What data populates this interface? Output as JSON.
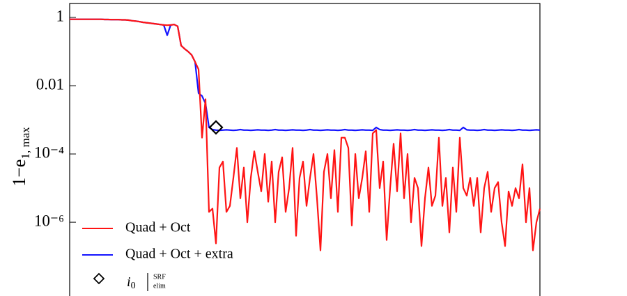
{
  "chart_data": {
    "type": "line",
    "ylabel": "1−e",
    "ylabel_sub": "1, max",
    "x": [
      0,
      1,
      2,
      3,
      4,
      5,
      6,
      7,
      8,
      9,
      10,
      11,
      12,
      13,
      14,
      15,
      16,
      17,
      18,
      19,
      20,
      21,
      22,
      23,
      24,
      25,
      26,
      27,
      28,
      29,
      30,
      31,
      32,
      33,
      34,
      35,
      36,
      37,
      38,
      39,
      40,
      41,
      42,
      43,
      44,
      45,
      46,
      47,
      48,
      49,
      50,
      51,
      52,
      53,
      54,
      55,
      56,
      57,
      58,
      59,
      60,
      61,
      62,
      63,
      64,
      65,
      66,
      67,
      68,
      69,
      70,
      71,
      72,
      73,
      74,
      75,
      76,
      77,
      78,
      79,
      80,
      81,
      82,
      83,
      84,
      85,
      86,
      87,
      88,
      89,
      90,
      91,
      92,
      93,
      94,
      95,
      96,
      97,
      98,
      99,
      100,
      101,
      102,
      103,
      104,
      105,
      106,
      107,
      108,
      109,
      110,
      111,
      112,
      113,
      114,
      115,
      116,
      117,
      118,
      119,
      120,
      121,
      122,
      123,
      124,
      125,
      126,
      127,
      128,
      129,
      130,
      131,
      132,
      133,
      134,
      135
    ],
    "series": [
      {
        "name": "Quad + Oct + extra",
        "color": "#1414ff",
        "values": [
          0.88,
          0.88,
          0.88,
          0.88,
          0.88,
          0.88,
          0.88,
          0.88,
          0.88,
          0.88,
          0.87,
          0.87,
          0.86,
          0.86,
          0.86,
          0.85,
          0.85,
          0.83,
          0.8,
          0.78,
          0.75,
          0.72,
          0.7,
          0.68,
          0.66,
          0.64,
          0.62,
          0.6,
          0.3,
          0.6,
          0.62,
          0.55,
          0.15,
          0.12,
          0.1,
          0.08,
          0.05,
          0.006,
          0.005,
          0.003,
          0.0006,
          0.00052,
          0.0005,
          0.00049,
          0.0005,
          0.00051,
          0.0005,
          0.00049,
          0.0005,
          0.00052,
          0.0005,
          0.0005,
          0.00049,
          0.0005,
          0.00051,
          0.0005,
          0.0005,
          0.00049,
          0.0005,
          0.00052,
          0.0005,
          0.0005,
          0.00049,
          0.0005,
          0.00051,
          0.0005,
          0.0005,
          0.00049,
          0.0005,
          0.00052,
          0.0005,
          0.0005,
          0.00049,
          0.0005,
          0.00051,
          0.0005,
          0.0005,
          0.00049,
          0.0005,
          0.00052,
          0.0005,
          0.0005,
          0.00049,
          0.0005,
          0.00051,
          0.0005,
          0.0005,
          0.00049,
          0.0006,
          0.00052,
          0.0005,
          0.0005,
          0.00049,
          0.0005,
          0.00051,
          0.0005,
          0.0005,
          0.00049,
          0.0005,
          0.00052,
          0.0005,
          0.0005,
          0.00049,
          0.0005,
          0.00051,
          0.0005,
          0.0005,
          0.00049,
          0.0005,
          0.00052,
          0.0005,
          0.0005,
          0.00049,
          0.0006,
          0.00051,
          0.0005,
          0.0005,
          0.00049,
          0.0005,
          0.00052,
          0.0005,
          0.0005,
          0.00049,
          0.0005,
          0.00051,
          0.0005,
          0.0005,
          0.00049,
          0.0005,
          0.00052,
          0.0005,
          0.0005,
          0.00049,
          0.0005,
          0.00051,
          0.0005
        ]
      },
      {
        "name": "Quad + Oct",
        "color": "#ff1414",
        "values": [
          0.88,
          0.88,
          0.88,
          0.88,
          0.88,
          0.88,
          0.88,
          0.88,
          0.88,
          0.88,
          0.87,
          0.87,
          0.86,
          0.86,
          0.86,
          0.85,
          0.85,
          0.83,
          0.8,
          0.78,
          0.75,
          0.72,
          0.7,
          0.68,
          0.66,
          0.64,
          0.62,
          0.6,
          0.59,
          0.6,
          0.62,
          0.55,
          0.15,
          0.12,
          0.1,
          0.08,
          0.05,
          0.03,
          0.0003,
          0.004,
          2e-06,
          2.5e-06,
          2.4e-07,
          4e-05,
          6e-05,
          2e-06,
          3e-06,
          2e-05,
          0.00015,
          5e-06,
          4e-05,
          1e-06,
          2e-05,
          0.00012,
          3e-05,
          8e-06,
          0.0001,
          4e-06,
          6e-05,
          1e-06,
          3e-05,
          8e-05,
          2e-06,
          1e-05,
          0.00015,
          4e-07,
          2e-05,
          6e-05,
          3e-06,
          2e-05,
          0.0001,
          5e-06,
          1.5e-07,
          3e-05,
          0.0001,
          5e-06,
          0.00013,
          2e-06,
          0.0003,
          0.0003,
          0.00015,
          8e-07,
          0.0001,
          5e-06,
          2e-05,
          0.00012,
          2e-06,
          0.0004,
          0.0005,
          1e-05,
          6e-05,
          3e-07,
          1e-05,
          0.0002,
          8e-06,
          0.0004,
          5e-06,
          0.0001,
          1e-06,
          2e-05,
          1e-05,
          2e-07,
          5e-06,
          4e-05,
          3e-06,
          6e-06,
          0.0003,
          3e-06,
          2e-05,
          5e-07,
          4e-05,
          2e-06,
          0.0003,
          1e-05,
          6e-06,
          2e-05,
          3e-06,
          2e-05,
          5e-07,
          1e-05,
          3e-05,
          2e-06,
          1e-05,
          1.5e-05,
          1e-06,
          2e-07,
          8e-06,
          3e-06,
          1e-05,
          5e-06,
          5e-05,
          1e-06,
          1e-05,
          1.5e-07,
          1e-06,
          2.5e-06
        ]
      }
    ],
    "marker": {
      "x": 42,
      "y": 0.0006,
      "label": "i",
      "label_sub": "0",
      "bar_top": "SRF",
      "bar_bottom": "elim"
    },
    "xlim": [
      0,
      135
    ],
    "ylim": [
      6.9e-09,
      2.56
    ],
    "log_y": true,
    "yticks": [
      1,
      0.01,
      {
        "value": 0.0001,
        "label": "10⁻⁴"
      },
      {
        "value": 1e-06,
        "label": "10⁻⁶"
      }
    ]
  }
}
